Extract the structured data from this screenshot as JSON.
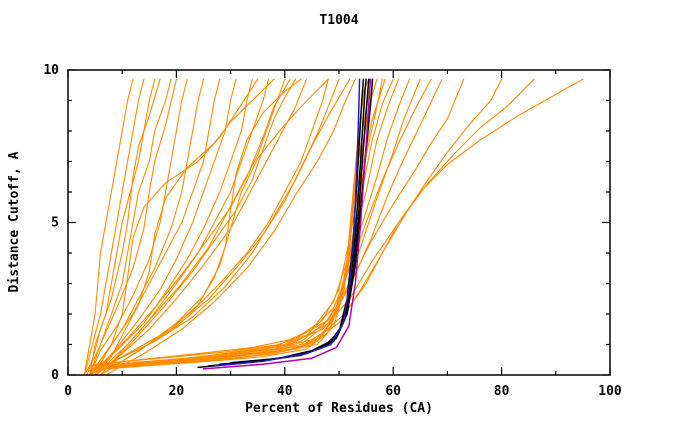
{
  "chart_data": {
    "type": "line",
    "title": "T1004",
    "xlabel": "Percent of Residues (CA)",
    "ylabel": "Distance Cutoff, A",
    "xlim": [
      0,
      100
    ],
    "ylim": [
      0,
      10
    ],
    "grid": false,
    "legend": "none",
    "x_ticks": {
      "major": [
        0,
        20,
        40,
        60,
        80,
        100
      ],
      "minor_step": 10
    },
    "y_ticks": {
      "major": [
        0,
        5,
        10
      ],
      "minor_step": 1
    },
    "colors": {
      "orange": "#FF8C00",
      "black": "#000000",
      "blue": "#1E1EC8",
      "magenta": "#B400B4"
    },
    "series": [
      {
        "color": "orange",
        "points": [
          3,
          0,
          4,
          1,
          5,
          2,
          5.5,
          3,
          6,
          4,
          7,
          5,
          8,
          6,
          9,
          7,
          10,
          8,
          11,
          9,
          12,
          9.7
        ]
      },
      {
        "color": "orange",
        "points": [
          3,
          0,
          4.5,
          1,
          6,
          2,
          7,
          3,
          8,
          4,
          9,
          5,
          10,
          6,
          11,
          7,
          12,
          8,
          13,
          9,
          14,
          9.7
        ]
      },
      {
        "color": "orange",
        "points": [
          4,
          0,
          5,
          1,
          7,
          2,
          8,
          3,
          9,
          4,
          10,
          5,
          11.5,
          6,
          13,
          7,
          14,
          8,
          15,
          9,
          16,
          9.7
        ]
      },
      {
        "color": "orange",
        "points": [
          3.5,
          0,
          5,
          0.8,
          6,
          1.5,
          8,
          2.5,
          10,
          4,
          11,
          5,
          12,
          6.5,
          13,
          7.5,
          15,
          8.5,
          17,
          9.7
        ]
      },
      {
        "color": "orange",
        "points": [
          4,
          0,
          6,
          1,
          8,
          2,
          10,
          3,
          11,
          4,
          12,
          5,
          13,
          6,
          15,
          7,
          16,
          8,
          18,
          9,
          19,
          9.7
        ]
      },
      {
        "color": "orange",
        "points": [
          3,
          0,
          5,
          0.6,
          7,
          1.4,
          9,
          2.2,
          12,
          3.5,
          14,
          4.8,
          15,
          6,
          16,
          7,
          18,
          8.2,
          20,
          9.7
        ]
      },
      {
        "color": "orange",
        "points": [
          4,
          0,
          6,
          0.8,
          9,
          1.6,
          12,
          2.6,
          15,
          3.8,
          17,
          5,
          18,
          6,
          19,
          7,
          20,
          8,
          21,
          9,
          22,
          9.7
        ]
      },
      {
        "color": "orange",
        "points": [
          5,
          0,
          7,
          0.7,
          10,
          1.5,
          13,
          2.5,
          16,
          3.5,
          19,
          4.8,
          21,
          6,
          22,
          7,
          23,
          8,
          24,
          9,
          25,
          9.7
        ]
      },
      {
        "color": "orange",
        "points": [
          4,
          0,
          8,
          1,
          12,
          2,
          15,
          3,
          18,
          4,
          21,
          5,
          23,
          6,
          25,
          7,
          26,
          8,
          27,
          9,
          28,
          9.7
        ]
      },
      {
        "color": "orange",
        "points": [
          5,
          0,
          9,
          0.9,
          13,
          1.8,
          17,
          2.8,
          20,
          3.8,
          23,
          5,
          25,
          6,
          27,
          7,
          29,
          8,
          30,
          9,
          31,
          9.7
        ]
      },
      {
        "color": "orange",
        "points": [
          4,
          0,
          9,
          0.8,
          14,
          1.7,
          18,
          2.7,
          22,
          3.8,
          25,
          4.8,
          28,
          6,
          30,
          7,
          32,
          8,
          33,
          9,
          34,
          9.7
        ]
      },
      {
        "color": "orange",
        "points": [
          6,
          0,
          10,
          0.8,
          15,
          1.8,
          20,
          3,
          24,
          4,
          27,
          5,
          30,
          6,
          32,
          7,
          34,
          8,
          36,
          9,
          37,
          9.7
        ]
      },
      {
        "color": "orange",
        "points": [
          5,
          0,
          11,
          1,
          16,
          2,
          21,
          3,
          26,
          4.2,
          29,
          5.2,
          32,
          6.2,
          35,
          7.2,
          37,
          8.2,
          39,
          9.2,
          40,
          9.7
        ]
      },
      {
        "color": "orange",
        "points": [
          4,
          0,
          7,
          0.5,
          11,
          1.2,
          16,
          2.2,
          21,
          3.3,
          26,
          4.5,
          30,
          5.5,
          33,
          6.5,
          36,
          7.8,
          38,
          8.8,
          41,
          9.7
        ]
      },
      {
        "color": "orange",
        "points": [
          6,
          0,
          12,
          1.1,
          18,
          2.3,
          23,
          3.4,
          27,
          4.4,
          31,
          5.4,
          34,
          6.4,
          36,
          7.4,
          38,
          8.4,
          40,
          9.1,
          42,
          9.7
        ]
      },
      {
        "color": "orange",
        "points": [
          5,
          0,
          10,
          0.7,
          15,
          1.5,
          20,
          2.5,
          25,
          3.6,
          30,
          4.8,
          33,
          5.8,
          36,
          6.8,
          39,
          7.8,
          42,
          8.8,
          44,
          9.7
        ]
      },
      {
        "color": "orange",
        "points": [
          4,
          0,
          6,
          0.4,
          8,
          1,
          10,
          2,
          11,
          3.2,
          12,
          4.5,
          14,
          5.5,
          18,
          6.3,
          24,
          7,
          28,
          7.8,
          31,
          8.6,
          35,
          9.7
        ]
      },
      {
        "color": "orange",
        "points": [
          5,
          0,
          8,
          0.6,
          10,
          1.3,
          13,
          2.3,
          15,
          3.4,
          16,
          4.6,
          18,
          5.8,
          22,
          6.8,
          27,
          7.6,
          30,
          8.3,
          34,
          9,
          38,
          9.7
        ]
      },
      {
        "color": "orange",
        "points": [
          4,
          0,
          12,
          0.8,
          19,
          1.5,
          24,
          2.3,
          27,
          3.2,
          29,
          4.2,
          30,
          5.4,
          31,
          6.6,
          33,
          7.7,
          36,
          8.6,
          40,
          9.3,
          43,
          9.7
        ]
      },
      {
        "color": "orange",
        "points": [
          6,
          0,
          14,
          0.9,
          20,
          1.7,
          25,
          2.6,
          28,
          3.6,
          30,
          4.8,
          32,
          6,
          35,
          7.1,
          39,
          8,
          43,
          8.8,
          48,
          9.7
        ]
      },
      {
        "color": "orange",
        "points": [
          4,
          0.2,
          12,
          0.35,
          22,
          0.5,
          32,
          0.65,
          40,
          0.8,
          46,
          1,
          49,
          1.6,
          51,
          2.8,
          52,
          4.5,
          53,
          6.5,
          54,
          8.5,
          55,
          9.7
        ]
      },
      {
        "color": "orange",
        "points": [
          5,
          0.25,
          15,
          0.4,
          25,
          0.55,
          35,
          0.7,
          43,
          0.9,
          47,
          1.3,
          50,
          2.2,
          51.5,
          3.8,
          52.5,
          5.8,
          53.5,
          7.8,
          54.5,
          9.3,
          55.5,
          9.7
        ]
      },
      {
        "color": "orange",
        "points": [
          4,
          0.15,
          14,
          0.3,
          26,
          0.45,
          36,
          0.6,
          44,
          0.85,
          48,
          1.4,
          50.5,
          2.5,
          52,
          4.2,
          53,
          6.2,
          54.5,
          8.2,
          56,
          9.7
        ]
      },
      {
        "color": "orange",
        "points": [
          6,
          0.3,
          18,
          0.45,
          30,
          0.6,
          40,
          0.8,
          46,
          1.1,
          49,
          1.9,
          51,
          3.2,
          52.5,
          5,
          54,
          7,
          55.5,
          8.8,
          57,
          9.7
        ]
      },
      {
        "color": "orange",
        "points": [
          5,
          0.2,
          16,
          0.35,
          28,
          0.5,
          38,
          0.7,
          45,
          1,
          48.5,
          1.7,
          51,
          3,
          53,
          5,
          55,
          7.2,
          57,
          8.8,
          58,
          9.7
        ]
      },
      {
        "color": "orange",
        "points": [
          4,
          0.3,
          13,
          0.5,
          24,
          0.7,
          34,
          0.9,
          42,
          1.2,
          47,
          1.8,
          50,
          2.8,
          52,
          4.5,
          54,
          6.5,
          56,
          8.3,
          58.5,
          9.7
        ]
      },
      {
        "color": "orange",
        "points": [
          7,
          0.25,
          20,
          0.4,
          33,
          0.6,
          42,
          0.85,
          47,
          1.3,
          50,
          2.3,
          52,
          3.8,
          54,
          5.8,
          56,
          7.6,
          58,
          8.9,
          60,
          9.7
        ]
      },
      {
        "color": "orange",
        "points": [
          5,
          0.35,
          17,
          0.55,
          29,
          0.75,
          39,
          1,
          45,
          1.5,
          49,
          2.4,
          52,
          4,
          55,
          6,
          57,
          7.7,
          59,
          8.8,
          61,
          9.7
        ]
      },
      {
        "color": "orange",
        "points": [
          6,
          0.3,
          20,
          0.5,
          34,
          0.75,
          43,
          1.1,
          48,
          1.8,
          51,
          3,
          54,
          4.8,
          57,
          6.5,
          59,
          7.8,
          61,
          8.8,
          63,
          9.7
        ]
      },
      {
        "color": "orange",
        "points": [
          5,
          0.25,
          18,
          0.45,
          31,
          0.7,
          41,
          1,
          47,
          1.6,
          51,
          2.6,
          54,
          4.2,
          57,
          5.8,
          60,
          7.3,
          62,
          8.4,
          65,
          9.7
        ]
      },
      {
        "color": "orange",
        "points": [
          7,
          0.3,
          22,
          0.55,
          36,
          0.85,
          44,
          1.3,
          49,
          2.2,
          52,
          3.5,
          55,
          5,
          58,
          6.4,
          61,
          7.6,
          64,
          8.7,
          67,
          9.7
        ]
      },
      {
        "color": "orange",
        "points": [
          6,
          0.2,
          19,
          0.4,
          33,
          0.65,
          43,
          1,
          48,
          1.7,
          52,
          2.9,
          56,
          4.5,
          59,
          5.9,
          62,
          7.1,
          65,
          8.2,
          69,
          9.7
        ]
      },
      {
        "color": "orange",
        "points": [
          5,
          0.3,
          25,
          0.6,
          40,
          1,
          48,
          1.8,
          52,
          3,
          56,
          4.4,
          60,
          5.6,
          64,
          6.7,
          67,
          7.6,
          70,
          8.4,
          73,
          9.7
        ]
      },
      {
        "color": "orange",
        "points": [
          6,
          0.25,
          28,
          0.55,
          43,
          0.95,
          50,
          1.7,
          54,
          2.8,
          58,
          4,
          62,
          5.2,
          66,
          6.3,
          70,
          7.3,
          74,
          8.2,
          78,
          9,
          80,
          9.7
        ]
      },
      {
        "color": "orange",
        "points": [
          5,
          0.3,
          22,
          0.5,
          38,
          0.85,
          47,
          1.5,
          52,
          2.5,
          56,
          3.7,
          61,
          5,
          66,
          6.2,
          71,
          7.2,
          76,
          8.1,
          81,
          8.8,
          86,
          9.7
        ]
      },
      {
        "color": "orange",
        "points": [
          4,
          0.2,
          20,
          0.45,
          36,
          0.75,
          46,
          1.2,
          51,
          2,
          55,
          3,
          58,
          4,
          61,
          5,
          65,
          6,
          70,
          6.9,
          76,
          7.7,
          83,
          8.5,
          90,
          9.2,
          95,
          9.7
        ]
      },
      {
        "color": "orange",
        "points": [
          5,
          0,
          10,
          0.6,
          17,
          1.3,
          23,
          2.1,
          28,
          3,
          33,
          4,
          37,
          5,
          40,
          6,
          43,
          7,
          45,
          8,
          47,
          9,
          48,
          9.7
        ]
      },
      {
        "color": "orange",
        "points": [
          6,
          0,
          13,
          0.8,
          20,
          1.6,
          26,
          2.5,
          31,
          3.5,
          36,
          4.6,
          40,
          5.7,
          43,
          6.8,
          46,
          7.9,
          48,
          8.8,
          50,
          9.7
        ]
      },
      {
        "color": "orange",
        "points": [
          4,
          0,
          9,
          0.5,
          16,
          1.1,
          23,
          1.9,
          29,
          2.9,
          34,
          4,
          38,
          5.2,
          42,
          6.4,
          45,
          7.5,
          48,
          8.5,
          52,
          9.7
        ]
      },
      {
        "color": "orange",
        "points": [
          7,
          0,
          14,
          0.7,
          21,
          1.5,
          27,
          2.4,
          33,
          3.5,
          38,
          4.7,
          42,
          5.9,
          46,
          7,
          49,
          8,
          51,
          8.9,
          53,
          9.7
        ]
      },
      {
        "color": "black",
        "points": [
          24,
          0.25,
          33,
          0.4,
          41,
          0.6,
          47,
          0.9,
          50,
          1.4,
          51.5,
          2.5,
          52.5,
          4.2,
          53.2,
          6,
          53.8,
          7.8,
          54.2,
          9,
          54.5,
          9.7
        ]
      },
      {
        "color": "black",
        "points": [
          26,
          0.3,
          35,
          0.45,
          43,
          0.65,
          48,
          1,
          50.5,
          1.6,
          52,
          2.8,
          53,
          4.6,
          53.8,
          6.5,
          54.4,
          8.2,
          54.8,
          9.3,
          55,
          9.7
        ]
      },
      {
        "color": "black",
        "points": [
          28,
          0.35,
          37,
          0.5,
          44,
          0.7,
          49,
          1.1,
          51,
          1.8,
          52.5,
          3.2,
          53.5,
          5,
          54.3,
          7,
          55,
          8.6,
          55.5,
          9.7
        ]
      },
      {
        "color": "black",
        "points": [
          30,
          0.4,
          39,
          0.55,
          45,
          0.8,
          49.5,
          1.2,
          51.5,
          2,
          53,
          3.6,
          54,
          5.5,
          55,
          7.4,
          55.8,
          8.8,
          56.2,
          9.7
        ]
      },
      {
        "color": "magenta",
        "points": [
          25,
          0.2,
          36,
          0.35,
          45,
          0.55,
          49.5,
          0.9,
          51.8,
          1.6,
          53,
          3,
          54,
          5,
          54.8,
          7,
          55.4,
          8.6,
          55.8,
          9.7
        ]
      },
      {
        "color": "blue",
        "points": [
          27,
          0.3,
          36,
          0.45,
          44,
          0.7,
          48.5,
          1,
          50.8,
          1.7,
          52,
          3,
          52.8,
          4.8,
          53.3,
          6.8,
          53.6,
          8.4,
          53.8,
          9.7
        ]
      }
    ]
  }
}
